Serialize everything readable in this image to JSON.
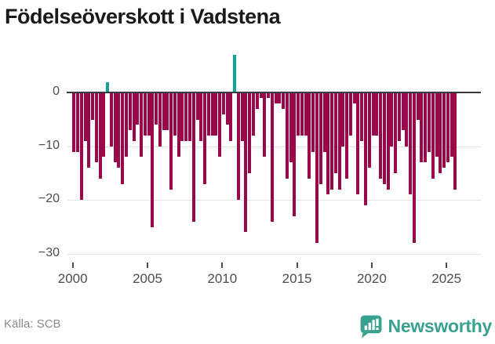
{
  "title": "Födelseöverskott i Vadstena",
  "footer": {
    "source_label": "Källa: SCB"
  },
  "logo": {
    "text": "Newsworthy",
    "icon": "newsworthy-speech-bubble-bar-chart"
  },
  "colors": {
    "bar_negative": "#99084b",
    "bar_positive": "#12a49c",
    "logo_teal": "#38a18f",
    "axis_line": "#3a3a3a",
    "gridline": "#e3e3e3",
    "tick_text": "#4d4d4d",
    "title_text": "#1a1a1a",
    "source_text": "#8a8a8a"
  },
  "chart_data": {
    "type": "bar",
    "title": "Födelseöverskott i Vadstena",
    "xlabel": "",
    "ylabel": "",
    "frequency": "quarterly",
    "start_period": "2000Q1",
    "end_period": "2025Q3",
    "ylim": [
      -32,
      8
    ],
    "grid": "horizontal",
    "legend": "none",
    "y_ticks": [
      {
        "value": 0,
        "label": "0"
      },
      {
        "value": -10,
        "label": "−10"
      },
      {
        "value": -20,
        "label": "−20"
      },
      {
        "value": -30,
        "label": "−30"
      }
    ],
    "x_ticks": [
      {
        "year": 2000,
        "label": "2000"
      },
      {
        "year": 2005,
        "label": "2005"
      },
      {
        "year": 2010,
        "label": "2010"
      },
      {
        "year": 2015,
        "label": "2015"
      },
      {
        "year": 2020,
        "label": "2020"
      },
      {
        "year": 2025,
        "label": "2025"
      }
    ],
    "values": [
      -11,
      -11,
      -20,
      -9,
      -14,
      -5,
      -13,
      -16,
      -12,
      2,
      -10,
      -13,
      -14,
      -17,
      -12,
      -7,
      -9,
      -6,
      -12,
      -8,
      -8,
      -25,
      -6,
      -10,
      -7,
      -7,
      -18,
      -8,
      -12,
      -9,
      -9,
      -9,
      -24,
      -5,
      -9,
      -17,
      -8,
      -8,
      -8,
      -12,
      -4,
      -6,
      -9,
      7,
      -20,
      -9,
      -26,
      -15,
      -8,
      -3,
      -1,
      -12,
      -1,
      -24,
      -2,
      -2,
      -3,
      -16,
      -13,
      -23,
      -8,
      -8,
      -8,
      -16,
      -11,
      -28,
      -17,
      -11,
      -19,
      -18,
      -15,
      -18,
      -10,
      -16,
      -8,
      -2,
      -19,
      -9,
      -21,
      -14,
      -8,
      -8,
      -16,
      -17,
      -18,
      -10,
      -15,
      -9,
      -7,
      -10,
      -19,
      -28,
      -5,
      -13,
      -13,
      -11,
      -16,
      -12,
      -15,
      -14,
      -13,
      -12,
      -18
    ],
    "positive_color_note": "positive quarters (2002Q2, 2010Q4) drawn in teal, negatives in dark magenta"
  }
}
